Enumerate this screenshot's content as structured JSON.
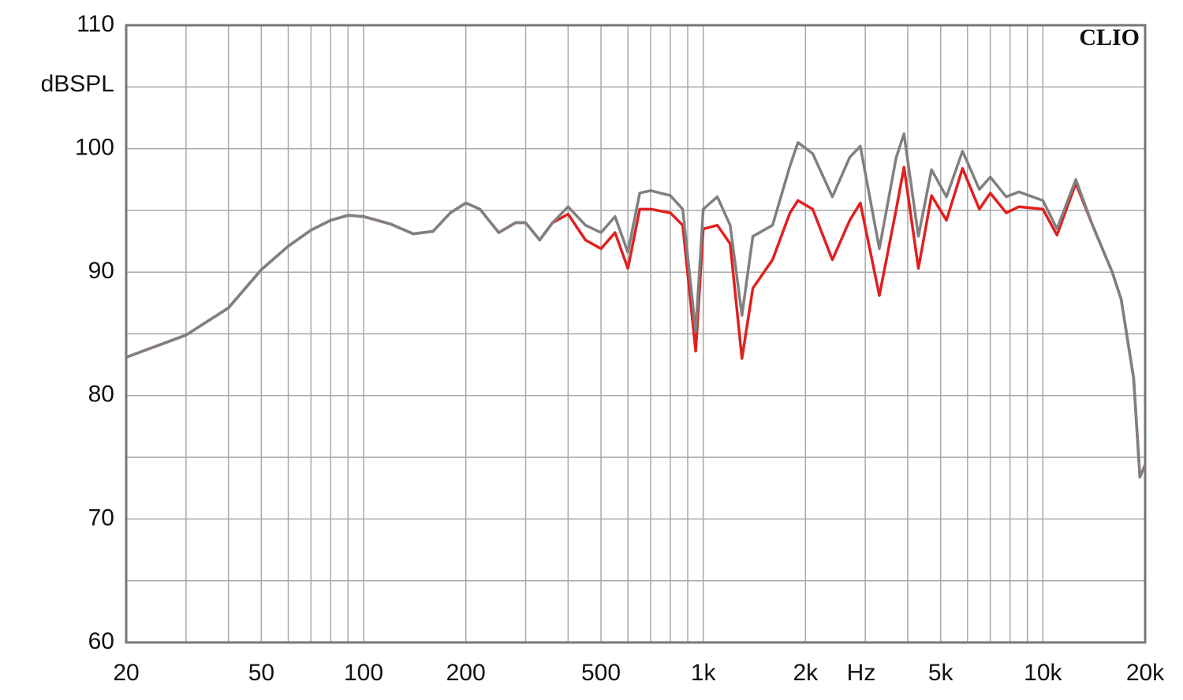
{
  "chart_data": {
    "type": "line",
    "y_label": "dBSPL",
    "x_label": "Hz",
    "annotation": "CLIO",
    "log_x": true,
    "grid": true,
    "xlim": [
      20,
      20000
    ],
    "ylim": [
      60,
      110
    ],
    "xticks": [
      20,
      50,
      100,
      200,
      500,
      {
        "value": 1000,
        "label": "1k"
      },
      {
        "value": 2000,
        "label": "2k"
      },
      {
        "value": 5000,
        "label": "5k"
      },
      {
        "value": 10000,
        "label": "10k"
      },
      {
        "value": 20000,
        "label": "20k"
      }
    ],
    "yticks": [
      60,
      70,
      80,
      90,
      100,
      110
    ],
    "x_minor_grid": [
      30,
      40,
      60,
      70,
      80,
      90,
      300,
      400,
      600,
      700,
      800,
      900,
      3000,
      4000,
      6000,
      7000,
      8000,
      9000
    ],
    "y_minor_grid": [
      65,
      75,
      85,
      95,
      105
    ],
    "x": [
      20,
      30,
      40,
      50,
      60,
      70,
      80,
      90,
      100,
      120,
      140,
      160,
      180,
      200,
      220,
      250,
      280,
      300,
      330,
      360,
      400,
      450,
      500,
      550,
      600,
      650,
      700,
      800,
      870,
      950,
      1000,
      1100,
      1200,
      1300,
      1400,
      1600,
      1800,
      1900,
      2100,
      2400,
      2700,
      2900,
      3300,
      3700,
      3900,
      4300,
      4700,
      5200,
      5800,
      6500,
      7000,
      7800,
      8500,
      10000,
      11000,
      12500,
      14000,
      16000,
      17000,
      18500,
      19300,
      20000
    ],
    "series": [
      {
        "color": "#e02020",
        "values": [
          83.1,
          84.9,
          87.1,
          90.2,
          92.1,
          93.4,
          94.2,
          94.6,
          94.5,
          93.9,
          93.1,
          93.3,
          94.8,
          95.6,
          95.1,
          93.2,
          94.0,
          94.0,
          92.6,
          94.0,
          94.7,
          92.6,
          91.9,
          93.2,
          90.3,
          95.1,
          95.1,
          94.8,
          93.8,
          83.6,
          93.5,
          93.8,
          92.3,
          83.0,
          88.7,
          91.0,
          94.8,
          95.8,
          95.1,
          91.0,
          94.2,
          95.6,
          88.1,
          95.1,
          98.5,
          90.3,
          96.2,
          94.2,
          98.4,
          95.1,
          96.4,
          94.8,
          95.3,
          95.1,
          93.0,
          97.2,
          93.8,
          90.0,
          87.8,
          81.4,
          73.4,
          74.4
        ]
      },
      {
        "color": "#808080",
        "values": [
          83.1,
          84.9,
          87.1,
          90.2,
          92.1,
          93.4,
          94.2,
          94.6,
          94.5,
          93.9,
          93.1,
          93.3,
          94.8,
          95.6,
          95.1,
          93.2,
          94.0,
          94.0,
          92.6,
          94.0,
          95.3,
          93.8,
          93.2,
          94.5,
          91.6,
          96.4,
          96.6,
          96.2,
          95.1,
          85.2,
          95.1,
          96.1,
          93.8,
          86.5,
          92.9,
          93.8,
          98.6,
          100.5,
          99.6,
          96.1,
          99.3,
          100.2,
          91.9,
          99.3,
          101.2,
          92.9,
          98.3,
          96.1,
          99.8,
          96.7,
          97.7,
          96.1,
          96.5,
          95.8,
          93.5,
          97.5,
          93.8,
          90.0,
          87.8,
          81.4,
          73.4,
          74.4
        ]
      }
    ]
  }
}
